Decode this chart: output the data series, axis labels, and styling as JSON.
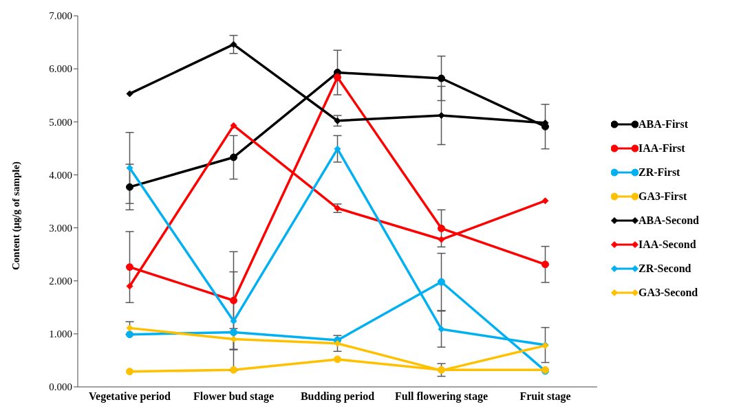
{
  "chart_data": {
    "type": "line",
    "ylabel": "Content (μg/g of sample)",
    "categories": [
      "Vegetative period",
      "Flower bud stage",
      "Budding period",
      "Full flowering stage",
      "Fruit stage"
    ],
    "ylim": [
      0,
      7
    ],
    "yticks": [
      {
        "value": 0,
        "label": "0.000"
      },
      {
        "value": 1,
        "label": "1.000"
      },
      {
        "value": 2,
        "label": "2.000"
      },
      {
        "value": 3,
        "label": "3.000"
      },
      {
        "value": 4,
        "label": "4.000"
      },
      {
        "value": 5,
        "label": "5.000"
      },
      {
        "value": 6,
        "label": "6.000"
      },
      {
        "value": 7,
        "label": "7.000"
      }
    ],
    "grid": false,
    "legend": "right",
    "line_style": "solid",
    "series": [
      {
        "name": "ABA-First",
        "color": "#000000",
        "marker": "circle",
        "values": [
          3.77,
          4.33,
          5.93,
          5.82,
          4.91
        ],
        "errors": [
          0.43,
          0.41,
          0.42,
          0.42,
          0.42
        ]
      },
      {
        "name": "IAA-First",
        "color": "#ff0000",
        "marker": "circle",
        "values": [
          2.26,
          1.63,
          5.84,
          2.99,
          2.31
        ],
        "errors": [
          0.67,
          0.92,
          null,
          0.35,
          0.34
        ]
      },
      {
        "name": "ZR-First",
        "color": "#00b0f0",
        "marker": "circle",
        "values": [
          0.99,
          1.03,
          0.88,
          1.98,
          0.3
        ],
        "errors": [
          null,
          null,
          null,
          0.54,
          null
        ]
      },
      {
        "name": "GA3-First",
        "color": "#ffc000",
        "marker": "circle",
        "values": [
          0.29,
          0.32,
          0.52,
          0.32,
          0.32
        ],
        "errors": [
          null,
          null,
          null,
          0.12,
          null
        ]
      },
      {
        "name": "ABA-Second",
        "color": "#000000",
        "marker": "diamond",
        "values": [
          5.53,
          6.46,
          5.02,
          5.12,
          4.98
        ],
        "errors": [
          null,
          0.17,
          0.1,
          0.55,
          null
        ]
      },
      {
        "name": "IAA-Second",
        "color": "#ff0000",
        "marker": "diamond",
        "values": [
          1.9,
          4.93,
          3.37,
          2.78,
          3.51
        ],
        "errors": [
          null,
          null,
          0.08,
          null,
          null
        ]
      },
      {
        "name": "ZR-Second",
        "color": "#00b0f0",
        "marker": "diamond",
        "values": [
          4.13,
          1.24,
          4.49,
          1.09,
          0.79
        ],
        "errors": [
          0.67,
          0.93,
          0.25,
          0.34,
          0.33
        ]
      },
      {
        "name": "GA3-Second",
        "color": "#ffc000",
        "marker": "diamond",
        "values": [
          1.11,
          0.9,
          0.82,
          0.31,
          0.78
        ],
        "errors": [
          0.12,
          0.2,
          0.15,
          null,
          null
        ]
      }
    ]
  }
}
